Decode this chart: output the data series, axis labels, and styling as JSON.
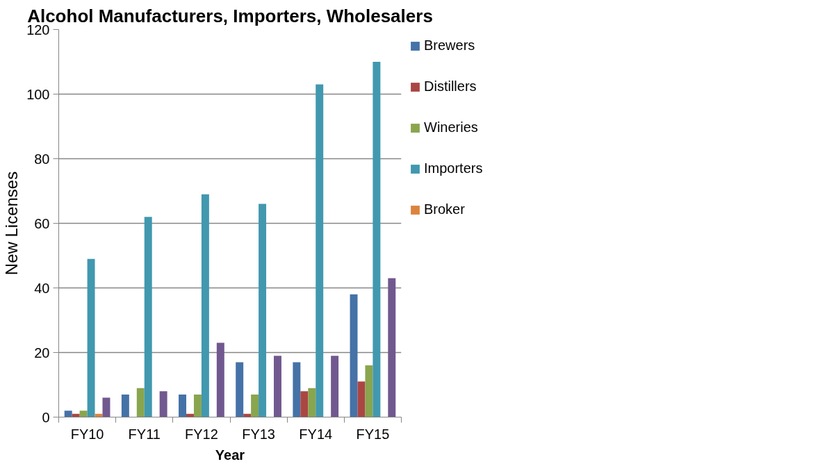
{
  "chart_data": {
    "type": "bar",
    "title": "Alcohol Manufacturers, Importers, Wholesalers",
    "xlabel": "Year",
    "ylabel": "New Licenses",
    "categories": [
      "FY10",
      "FY11",
      "FY12",
      "FY13",
      "FY14",
      "FY15"
    ],
    "series": [
      {
        "name": "Brewers",
        "color": "#4572a7",
        "values": [
          2,
          7,
          7,
          17,
          17,
          38
        ]
      },
      {
        "name": "Distillers",
        "color": "#aa4643",
        "values": [
          1,
          0,
          1,
          1,
          8,
          11
        ]
      },
      {
        "name": "Wineries",
        "color": "#89a54e",
        "values": [
          2,
          9,
          7,
          7,
          9,
          16
        ]
      },
      {
        "name": "Importers",
        "color": "#4198af",
        "values": [
          49,
          62,
          69,
          66,
          103,
          110
        ]
      },
      {
        "name": "Broker",
        "color": "#db843d",
        "values": [
          1,
          0,
          0,
          0,
          0,
          0
        ]
      },
      {
        "color": "#71588f",
        "values": [
          6,
          8,
          23,
          19,
          19,
          43
        ]
      }
    ],
    "ylim": [
      0,
      120
    ],
    "yticks": [
      0,
      20,
      40,
      60,
      80,
      100,
      120
    ],
    "grid": "y",
    "legend": "right"
  }
}
